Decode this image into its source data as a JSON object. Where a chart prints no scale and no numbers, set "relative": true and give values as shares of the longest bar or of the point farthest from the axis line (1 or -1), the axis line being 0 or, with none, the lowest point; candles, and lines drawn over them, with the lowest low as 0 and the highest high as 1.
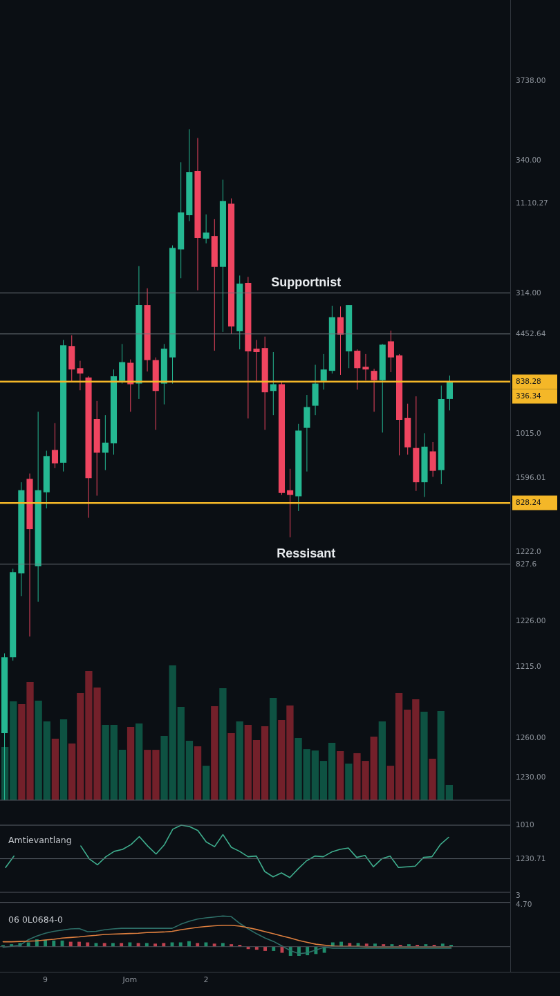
{
  "chart_data": [
    {
      "type": "candlestick",
      "relative": true,
      "categories": [
        null,
        null,
        null,
        null,
        null,
        null,
        null,
        null,
        null,
        null,
        null,
        null,
        null,
        null,
        null,
        null,
        null,
        null,
        null,
        null,
        null,
        null,
        null,
        null,
        null,
        null,
        null,
        null,
        null,
        null,
        null,
        null,
        null,
        null,
        null,
        null,
        null,
        null,
        null,
        null,
        null,
        null,
        null,
        null,
        null,
        null,
        null,
        null,
        null,
        null,
        null,
        null,
        null,
        null
      ],
      "ohlc": [
        [
          0.1,
          0.219,
          0,
          0.213
        ],
        [
          0.213,
          0.345,
          0.208,
          0.34
        ],
        [
          0.338,
          0.474,
          0.304,
          0.462
        ],
        [
          0.479,
          0.487,
          0.244,
          0.404
        ],
        [
          0.349,
          0.579,
          0.296,
          0.462
        ],
        [
          0.459,
          0.521,
          0.435,
          0.513
        ],
        [
          0.522,
          0.562,
          0.495,
          0.502
        ],
        [
          0.503,
          0.686,
          0.49,
          0.678
        ],
        [
          0.677,
          0.693,
          0.624,
          0.642
        ],
        [
          0.644,
          0.655,
          0.611,
          0.636
        ],
        [
          0.63,
          0.632,
          0.421,
          0.48
        ],
        [
          0.568,
          0.595,
          0.454,
          0.518
        ],
        [
          0.518,
          0.574,
          0.492,
          0.533
        ],
        [
          0.532,
          0.642,
          0.515,
          0.632
        ],
        [
          0.625,
          0.68,
          0.621,
          0.653
        ],
        [
          0.652,
          0.657,
          0.579,
          0.62
        ],
        [
          0.621,
          0.796,
          0.598,
          0.738
        ],
        [
          0.738,
          0.763,
          0.639,
          0.656
        ],
        [
          0.656,
          0.66,
          0.552,
          0.61
        ],
        [
          0.621,
          0.68,
          0.59,
          0.673
        ],
        [
          0.66,
          0.827,
          0.621,
          0.823
        ],
        [
          0.821,
          0.951,
          0.778,
          0.876
        ],
        [
          0.872,
          1,
          0.863,
          0.936
        ],
        [
          0.938,
          0.987,
          0.76,
          0.838
        ],
        [
          0.837,
          0.873,
          0.83,
          0.846
        ],
        [
          0.841,
          0.866,
          0.67,
          0.795
        ],
        [
          0.795,
          0.925,
          0.698,
          0.893
        ],
        [
          0.889,
          0.897,
          0.695,
          0.706
        ],
        [
          0.699,
          0.782,
          0.672,
          0.77
        ],
        [
          0.771,
          0.78,
          0.569,
          0.669
        ],
        [
          0.673,
          0.686,
          0.624,
          0.668
        ],
        [
          0.674,
          0.691,
          0.552,
          0.608
        ],
        [
          0.61,
          0.668,
          0.574,
          0.62
        ],
        [
          0.62,
          0.623,
          0.455,
          0.458
        ],
        [
          0.462,
          0.494,
          0.392,
          0.455
        ],
        [
          0.453,
          0.561,
          0.431,
          0.551
        ],
        [
          0.555,
          0.604,
          0.49,
          0.586
        ],
        [
          0.588,
          0.649,
          0.574,
          0.621
        ],
        [
          0.625,
          0.665,
          0.612,
          0.642
        ],
        [
          0.64,
          0.737,
          0.636,
          0.72
        ],
        [
          0.72,
          0.736,
          0.634,
          0.694
        ],
        [
          0.669,
          0.738,
          0.644,
          0.738
        ],
        [
          0.67,
          0.672,
          0.612,
          0.644
        ],
        [
          0.646,
          0.665,
          0.626,
          0.642
        ],
        [
          0.64,
          0.643,
          0.579,
          0.626
        ],
        [
          0.626,
          0.68,
          0.548,
          0.679
        ],
        [
          0.684,
          0.7,
          0.638,
          0.66
        ],
        [
          0.663,
          0.665,
          0.514,
          0.567
        ],
        [
          0.57,
          0.591,
          0.515,
          0.526
        ],
        [
          0.525,
          0.602,
          0.461,
          0.474
        ],
        [
          0.474,
          0.547,
          0.452,
          0.527
        ],
        [
          0.52,
          0.534,
          0.482,
          0.491
        ],
        [
          0.492,
          0.618,
          0.471,
          0.598
        ],
        [
          0.598,
          0.633,
          0.581,
          0.623
        ]
      ],
      "colors": [
        "#25b892",
        "#25b892",
        "#25b892",
        "#ef4560",
        "#25b892",
        "#25b892",
        "#ef4560",
        "#25b892",
        "#ef4560",
        "#ef4560",
        "#ef4560",
        "#ef4560",
        "#25b892",
        "#25b892",
        "#25b892",
        "#ef4560",
        "#25b892",
        "#ef4560",
        "#ef4560",
        "#25b892",
        "#25b892",
        "#25b892",
        "#25b892",
        "#ef4560",
        "#25b892",
        "#ef4560",
        "#25b892",
        "#ef4560",
        "#25b892",
        "#ef4560",
        "#ef4560",
        "#ef4560",
        "#25b892",
        "#ef4560",
        "#ef4560",
        "#25b892",
        "#25b892",
        "#25b892",
        "#25b892",
        "#25b892",
        "#ef4560",
        "#25b892",
        "#ef4560",
        "#ef4560",
        "#ef4560",
        "#25b892",
        "#ef4560",
        "#ef4560",
        "#ef4560",
        "#ef4560",
        "#25b892",
        "#ef4560",
        "#25b892",
        "#25b892"
      ],
      "ref_lines": [
        {
          "axis": "y",
          "value": 0.756,
          "color": "#6f757d",
          "label": "Supportnist"
        },
        {
          "axis": "y",
          "value": 0.695,
          "color": "#6f757d"
        },
        {
          "axis": "y",
          "value": 0.624,
          "color": "#f4b728"
        },
        {
          "axis": "y",
          "value": 0.443,
          "color": "#f4b728"
        },
        {
          "axis": "y",
          "value": 0.352,
          "color": "#6f757d",
          "label": "Ressisant"
        }
      ],
      "annotations": [
        "3738.00",
        "340.00",
        "11.10.27",
        "314.00",
        "4452.64",
        "838.28",
        "336.34",
        "1015.0",
        "1596.01",
        "828.24",
        "1222.0",
        "827.6",
        "1226.00",
        "1215.0",
        "1260.00",
        "1230.00"
      ]
    },
    {
      "type": "bar",
      "relative": true,
      "categories": [
        null,
        null,
        null,
        null,
        null,
        null,
        null,
        null,
        null,
        null,
        null,
        null,
        null,
        null,
        null,
        null,
        null,
        null,
        null,
        null,
        null,
        null,
        null,
        null,
        null,
        null,
        null,
        null,
        null,
        null,
        null,
        null,
        null,
        null,
        null,
        null,
        null,
        null,
        null,
        null,
        null,
        null,
        null,
        null,
        null,
        null,
        null,
        null,
        null,
        null,
        null,
        null,
        null,
        null
      ],
      "values": [
        0.395,
        0.733,
        0.713,
        0.877,
        0.738,
        0.585,
        0.456,
        0.6,
        0.421,
        0.795,
        0.959,
        0.836,
        0.559,
        0.559,
        0.374,
        0.544,
        0.569,
        0.374,
        0.374,
        0.477,
        1,
        0.692,
        0.441,
        0.4,
        0.256,
        0.697,
        0.831,
        0.497,
        0.585,
        0.559,
        0.446,
        0.549,
        0.759,
        0.595,
        0.703,
        0.462,
        0.379,
        0.369,
        0.292,
        0.426,
        0.364,
        0.272,
        0.349,
        0.292,
        0.472,
        0.585,
        0.256,
        0.795,
        0.672,
        0.749,
        0.656,
        0.308,
        0.662,
        0.113
      ],
      "colors": [
        "#0e5242",
        "#0e5242",
        "#73202a",
        "#73202a",
        "#0e5242",
        "#0e5242",
        "#73202a",
        "#0e5242",
        "#73202a",
        "#73202a",
        "#73202a",
        "#73202a",
        "#0e5242",
        "#0e5242",
        "#0e5242",
        "#73202a",
        "#0e5242",
        "#73202a",
        "#73202a",
        "#0e5242",
        "#0e5242",
        "#0e5242",
        "#0e5242",
        "#73202a",
        "#0e5242",
        "#73202a",
        "#0e5242",
        "#73202a",
        "#0e5242",
        "#73202a",
        "#73202a",
        "#73202a",
        "#0e5242",
        "#73202a",
        "#73202a",
        "#0e5242",
        "#0e5242",
        "#0e5242",
        "#0e5242",
        "#0e5242",
        "#73202a",
        "#0e5242",
        "#73202a",
        "#73202a",
        "#73202a",
        "#0e5242",
        "#73202a",
        "#73202a",
        "#73202a",
        "#73202a",
        "#0e5242",
        "#73202a",
        "#0e5242",
        "#0e5242"
      ]
    },
    {
      "type": "line",
      "title": "Amtievantlang",
      "relative": true,
      "categories": [
        null,
        null,
        null,
        null,
        null,
        null,
        null,
        null,
        null,
        null,
        null,
        null,
        null,
        null,
        null,
        null,
        null,
        null,
        null,
        null,
        null,
        null,
        null,
        null,
        null,
        null,
        null,
        null,
        null,
        null,
        null,
        null,
        null,
        null,
        null,
        null,
        null,
        null,
        null,
        null,
        null,
        null,
        null,
        null,
        null,
        null,
        null,
        null,
        null,
        null,
        null,
        null,
        null,
        null
      ],
      "series": [
        {
          "color": "#3fae8e",
          "values": [
            0.37,
            0.54,
            null,
            null,
            null,
            null,
            null,
            null,
            null,
            0.69,
            0.5,
            0.41,
            0.53,
            0.61,
            0.64,
            0.71,
            0.83,
            0.69,
            0.57,
            0.71,
            0.94,
            1,
            0.98,
            0.92,
            0.75,
            0.68,
            0.86,
            0.67,
            0.61,
            0.53,
            0.54,
            0.31,
            0.23,
            0.29,
            0.22,
            0.35,
            0.47,
            0.54,
            0.53,
            0.6,
            0.64,
            0.66,
            0.52,
            0.55,
            0.38,
            0.5,
            0.54,
            0.37,
            0.38,
            0.39,
            0.52,
            0.53,
            0.71,
            0.82
          ]
        }
      ],
      "ref_lines": [
        {
          "axis": "y",
          "value": 1,
          "color": "#5a6068"
        },
        {
          "axis": "y",
          "value": 0.5,
          "color": "#5a6068"
        },
        {
          "axis": "y",
          "value": -0.15,
          "color": "#5a6068"
        }
      ],
      "annotations": [
        "1010",
        "1230.71",
        "3",
        "4.70"
      ]
    },
    {
      "type": "line",
      "title": "06 0L0684-0",
      "relative": true,
      "categories": [
        null,
        null,
        null,
        null,
        null,
        "9",
        null,
        null,
        null,
        null,
        null,
        null,
        null,
        null,
        null,
        "Jom",
        null,
        null,
        null,
        null,
        null,
        null,
        null,
        null,
        "2",
        null,
        null,
        null,
        null,
        null,
        null,
        null,
        null,
        null,
        null,
        null,
        null,
        null,
        null,
        null,
        null,
        null,
        null,
        null,
        null,
        null,
        null,
        null,
        null,
        null,
        null,
        null,
        null,
        null
      ],
      "series": [
        {
          "type": "bar",
          "values": [
            0.05,
            0.08,
            0.12,
            0.14,
            0.24,
            0.22,
            0.2,
            0.2,
            0.16,
            0.16,
            0.14,
            0.12,
            0.12,
            0.12,
            0.12,
            0.14,
            0.12,
            0.12,
            0.1,
            0.12,
            0.14,
            0.14,
            0.18,
            0.12,
            0.14,
            0.1,
            0.12,
            0.08,
            0.06,
            -0.08,
            -0.1,
            -0.14,
            -0.14,
            -0.2,
            -0.3,
            -0.3,
            -0.28,
            -0.24,
            -0.2,
            0.14,
            0.16,
            0.12,
            0.12,
            0.1,
            0.1,
            0.08,
            0.08,
            0.06,
            0.08,
            0.06,
            0.08,
            0.06,
            0.1,
            0.06
          ],
          "colors": [
            "#1f8c6b",
            "#1f8c6b",
            "#1f8c6b",
            "#1f8c6b",
            "#1f8c6b",
            "#1f8c6b",
            "#1f8c6b",
            "#1f8c6b",
            "#c0414f",
            "#c0414f",
            "#c0414f",
            "#1f8c6b",
            "#c0414f",
            "#1f8c6b",
            "#c0414f",
            "#1f8c6b",
            "#c0414f",
            "#1f8c6b",
            "#c0414f",
            "#c0414f",
            "#1f8c6b",
            "#1f8c6b",
            "#1f8c6b",
            "#c0414f",
            "#1f8c6b",
            "#c0414f",
            "#1f8c6b",
            "#c0414f",
            "#c0414f",
            "#c0414f",
            "#c0414f",
            "#c0414f",
            "#1f8c6b",
            "#c0414f",
            "#1f8c6b",
            "#1f8c6b",
            "#1f8c6b",
            "#1f8c6b",
            "#1f8c6b",
            "#1f8c6b",
            "#1f8c6b",
            "#c0414f",
            "#1f8c6b",
            "#c0414f",
            "#1f8c6b",
            "#c0414f",
            "#1f8c6b",
            "#c0414f",
            "#1f8c6b",
            "#c0414f",
            "#1f8c6b",
            "#c0414f",
            "#1f8c6b",
            "#1f8c6b"
          ]
        },
        {
          "color": "#2e6f68",
          "values": [
            -0.02,
            0.01,
            0.05,
            0.23,
            0.35,
            0.44,
            0.5,
            0.54,
            0.58,
            0.59,
            0.49,
            0.5,
            0.55,
            0.58,
            0.6,
            0.6,
            0.6,
            0.6,
            0.6,
            0.6,
            0.6,
            0.73,
            0.83,
            0.9,
            0.94,
            0.97,
            1,
            0.98,
            0.76,
            0.58,
            0.42,
            0.28,
            0.17,
            0.02,
            -0.13,
            -0.23,
            -0.2,
            -0.11,
            -0.02,
            -0.05,
            -0.05,
            -0.05,
            -0.05,
            -0.05,
            -0.05,
            -0.05,
            -0.05,
            -0.05,
            -0.05,
            -0.05,
            -0.05,
            -0.05,
            -0.05,
            -0.05
          ]
        },
        {
          "color": "#e0803f",
          "values": [
            0.16,
            0.16,
            0.17,
            0.18,
            0.19,
            0.22,
            0.24,
            0.28,
            0.3,
            0.32,
            0.35,
            0.37,
            0.4,
            0.41,
            0.42,
            0.43,
            0.44,
            0.46,
            0.47,
            0.48,
            0.5,
            0.55,
            0.59,
            0.63,
            0.66,
            0.68,
            0.7,
            0.7,
            0.67,
            0.62,
            0.56,
            0.49,
            0.42,
            0.35,
            0.28,
            0.2,
            0.14,
            0.08,
            0.05,
            0.02,
            0.01,
            0.01,
            0.01,
            0,
            0,
            0,
            0,
            0,
            0,
            0,
            0,
            0,
            0,
            0
          ]
        }
      ],
      "tick_labels": "x"
    }
  ]
}
